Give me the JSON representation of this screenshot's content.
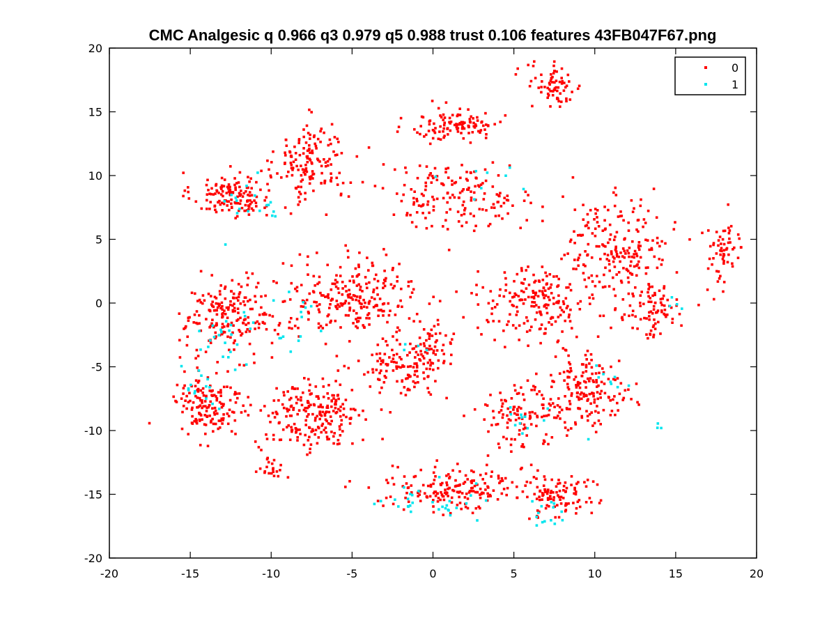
{
  "chart_data": {
    "type": "scatter",
    "title": "CMC Analgesic q 0.966 q3 0.979 q5 0.988 trust 0.106 features 43FB047F67.png",
    "xlabel": "",
    "ylabel": "",
    "xlim": [
      -20,
      20
    ],
    "ylim": [
      -20,
      20
    ],
    "x_ticks": [
      -20,
      -15,
      -10,
      -5,
      0,
      5,
      10,
      15,
      20
    ],
    "y_ticks": [
      -20,
      -15,
      -10,
      -5,
      0,
      5,
      10,
      15,
      20
    ],
    "grid": false,
    "legend_position": "top-right",
    "series": [
      {
        "name": "0",
        "color": "#ff0000",
        "clusters": [
          {
            "cx": -12.5,
            "cy": 8.5,
            "sx": 2.2,
            "sy": 1.6,
            "n": 140
          },
          {
            "cx": -7.5,
            "cy": 11.0,
            "sx": 2.0,
            "sy": 2.8,
            "n": 150
          },
          {
            "cx": 1.5,
            "cy": 14.0,
            "sx": 2.6,
            "sy": 1.2,
            "n": 110
          },
          {
            "cx": 7.5,
            "cy": 17.0,
            "sx": 1.6,
            "sy": 1.6,
            "n": 70
          },
          {
            "cx": 1.5,
            "cy": 8.5,
            "sx": 4.5,
            "sy": 2.4,
            "n": 170
          },
          {
            "cx": 11.5,
            "cy": 4.5,
            "sx": 2.8,
            "sy": 3.2,
            "n": 190
          },
          {
            "cx": 18.0,
            "cy": 4.0,
            "sx": 1.2,
            "sy": 2.4,
            "n": 60
          },
          {
            "cx": -12.5,
            "cy": -1.0,
            "sx": 2.6,
            "sy": 2.6,
            "n": 200
          },
          {
            "cx": -5.0,
            "cy": 0.5,
            "sx": 3.5,
            "sy": 2.8,
            "n": 240
          },
          {
            "cx": 0.0,
            "cy": -3.5,
            "sx": 1.2,
            "sy": 2.0,
            "n": 50
          },
          {
            "cx": 6.5,
            "cy": 0.0,
            "sx": 3.5,
            "sy": 2.5,
            "n": 200
          },
          {
            "cx": 13.5,
            "cy": -0.5,
            "sx": 2.0,
            "sy": 2.0,
            "n": 90
          },
          {
            "cx": -14.0,
            "cy": -8.0,
            "sx": 2.0,
            "sy": 2.6,
            "n": 150
          },
          {
            "cx": -7.5,
            "cy": -9.0,
            "sx": 3.0,
            "sy": 2.6,
            "n": 220
          },
          {
            "cx": -2.0,
            "cy": -5.0,
            "sx": 2.4,
            "sy": 2.0,
            "n": 120
          },
          {
            "cx": 9.5,
            "cy": -7.0,
            "sx": 2.5,
            "sy": 2.8,
            "n": 180
          },
          {
            "cx": 5.0,
            "cy": -9.0,
            "sx": 2.2,
            "sy": 2.2,
            "n": 100
          },
          {
            "cx": -10.0,
            "cy": -13.0,
            "sx": 0.8,
            "sy": 0.8,
            "n": 20
          },
          {
            "cx": 1.5,
            "cy": -14.5,
            "sx": 3.8,
            "sy": 1.6,
            "n": 180
          },
          {
            "cx": 7.5,
            "cy": -15.0,
            "sx": 2.0,
            "sy": 1.8,
            "n": 100
          }
        ]
      },
      {
        "name": "1",
        "color": "#00e5ee",
        "clusters": [
          {
            "cx": -11.0,
            "cy": 7.5,
            "sx": 2.0,
            "sy": 1.8,
            "n": 18
          },
          {
            "cx": -13.0,
            "cy": -2.5,
            "sx": 2.0,
            "sy": 2.5,
            "n": 22
          },
          {
            "cx": -9.0,
            "cy": -1.0,
            "sx": 2.0,
            "sy": 2.0,
            "n": 14
          },
          {
            "cx": -14.0,
            "cy": -6.0,
            "sx": 1.5,
            "sy": 2.5,
            "n": 16
          },
          {
            "cx": 0.5,
            "cy": -15.5,
            "sx": 3.2,
            "sy": 1.3,
            "n": 30
          },
          {
            "cx": 7.0,
            "cy": -16.5,
            "sx": 1.4,
            "sy": 1.0,
            "n": 14
          },
          {
            "cx": 5.5,
            "cy": -9.5,
            "sx": 2.0,
            "sy": 1.6,
            "n": 12
          },
          {
            "cx": 11.0,
            "cy": -6.0,
            "sx": 1.5,
            "sy": 1.5,
            "n": 8
          },
          {
            "cx": 4.0,
            "cy": 9.5,
            "sx": 2.5,
            "sy": 1.5,
            "n": 8
          },
          {
            "cx": 15.0,
            "cy": 0.0,
            "sx": 1.0,
            "sy": 1.0,
            "n": 4
          },
          {
            "cx": 14.0,
            "cy": -9.5,
            "sx": 0.4,
            "sy": 0.4,
            "n": 3
          },
          {
            "cx": -1.5,
            "cy": -3.5,
            "sx": 1.0,
            "sy": 1.0,
            "n": 4
          }
        ]
      }
    ]
  }
}
